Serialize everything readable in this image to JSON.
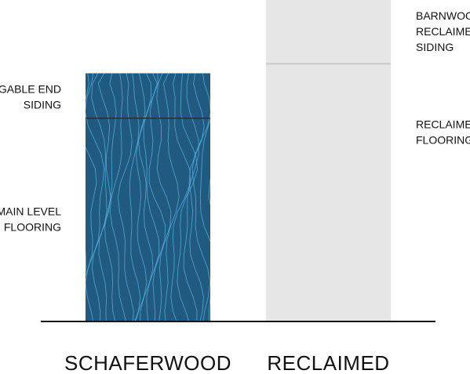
{
  "chart_data": {
    "type": "bar",
    "stacked": true,
    "categories": [
      "SCHAFERWOOD",
      "RECLAIMED"
    ],
    "bars": [
      {
        "category": "SCHAFERWOOD",
        "segments": [
          {
            "label_lines": [
              "MAIN LEVEL",
              "FLOORING"
            ],
            "value": 8.6
          },
          {
            "label_lines": [
              "GABLE END",
              "SIDING"
            ],
            "value": 1.9
          }
        ],
        "label_side": "left",
        "color": "#205a80",
        "texture": "wood-grain"
      },
      {
        "category": "RECLAIMED",
        "segments": [
          {
            "label_lines": [
              "RECLAIMED",
              "FLOORING"
            ],
            "value": 10.9
          },
          {
            "label_lines": [
              "BARNWOOD",
              "RECLAIMED",
              "SIDING"
            ],
            "value": 2.7
          }
        ],
        "label_side": "right",
        "color": "#e6e6e6",
        "divider_color": "#c8c8c8"
      }
    ],
    "ylim": [
      0,
      13.6
    ],
    "grid": false,
    "title": "",
    "xlabel": "",
    "ylabel": ""
  }
}
